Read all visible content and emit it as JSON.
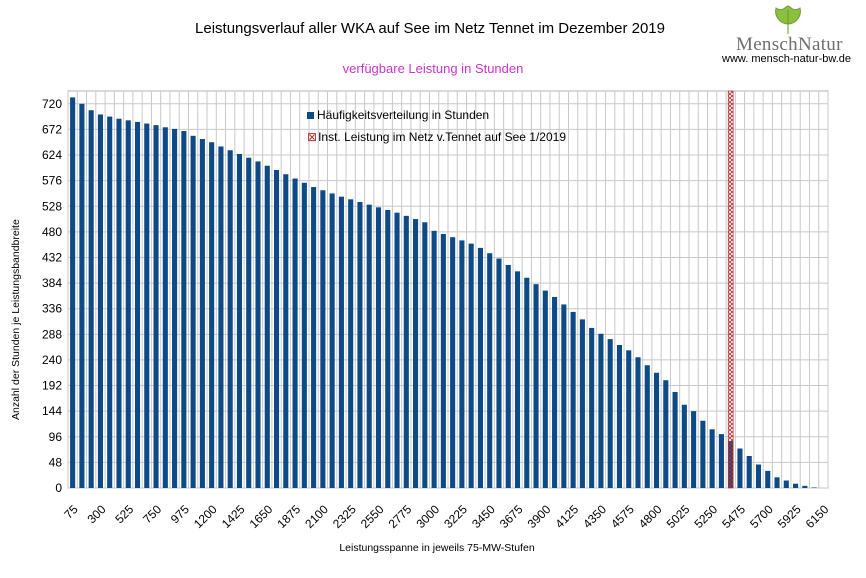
{
  "chart_data": {
    "type": "bar",
    "title": "Leistungsverlauf aller WKA auf See im Netz Tennet im Dezember 2019",
    "subtitle": "verfügbare Leistung in Stunden",
    "xlabel": "Leistungsspanne in jeweils 75-MW-Stufen",
    "ylabel": "Anzahl der Stunden je Leistungsbandbreite",
    "ylim": [
      0,
      744
    ],
    "yticks": [
      0,
      48,
      96,
      144,
      192,
      240,
      288,
      336,
      384,
      432,
      480,
      528,
      576,
      624,
      672,
      720
    ],
    "xtick_labels": [
      "75",
      "300",
      "525",
      "750",
      "975",
      "1200",
      "1425",
      "1650",
      "1875",
      "2100",
      "2325",
      "2550",
      "2775",
      "3000",
      "3225",
      "3450",
      "3675",
      "3900",
      "4125",
      "4350",
      "4575",
      "4800",
      "5025",
      "5250",
      "5475",
      "5700",
      "5925",
      "6150"
    ],
    "grid": true,
    "legend_position": "top-center",
    "categories": [
      "75",
      "150",
      "225",
      "300",
      "375",
      "450",
      "525",
      "600",
      "675",
      "750",
      "825",
      "900",
      "975",
      "1050",
      "1125",
      "1200",
      "1275",
      "1350",
      "1425",
      "1500",
      "1575",
      "1650",
      "1725",
      "1800",
      "1875",
      "1950",
      "2025",
      "2100",
      "2175",
      "2250",
      "2325",
      "2400",
      "2475",
      "2550",
      "2625",
      "2700",
      "2775",
      "2850",
      "2925",
      "3000",
      "3075",
      "3150",
      "3225",
      "3300",
      "3375",
      "3450",
      "3525",
      "3600",
      "3675",
      "3750",
      "3825",
      "3900",
      "3975",
      "4050",
      "4125",
      "4200",
      "4275",
      "4350",
      "4425",
      "4500",
      "4575",
      "4650",
      "4725",
      "4800",
      "4875",
      "4950",
      "5025",
      "5100",
      "5175",
      "5250",
      "5325",
      "5400",
      "5475",
      "5550",
      "5625",
      "5700",
      "5775",
      "5850",
      "5925",
      "6000",
      "6075",
      "6150"
    ],
    "series": [
      {
        "name": "Häufigkeitsverteilung in Stunden",
        "color": "#0d4a86",
        "values": [
          732,
          720,
          708,
          700,
          696,
          692,
          689,
          686,
          683,
          680,
          676,
          673,
          669,
          660,
          654,
          648,
          640,
          633,
          626,
          619,
          612,
          604,
          596,
          588,
          580,
          572,
          564,
          558,
          552,
          546,
          541,
          536,
          531,
          526,
          521,
          516,
          510,
          504,
          498,
          482,
          476,
          470,
          464,
          458,
          450,
          440,
          430,
          418,
          406,
          394,
          382,
          370,
          358,
          344,
          330,
          316,
          300,
          289,
          279,
          268,
          258,
          245,
          230,
          216,
          202,
          180,
          156,
          144,
          126,
          110,
          101,
          88,
          74,
          60,
          44,
          32,
          20,
          14,
          8,
          4,
          1,
          0
        ]
      }
    ],
    "marker": {
      "name": "Inst. Leistung im Netz v.Tennet auf See 1/2019",
      "x": 5400,
      "color": "#b03030"
    }
  },
  "branding": {
    "logo_text": "MenschNatur",
    "url": "www. mensch-natur-bw.de"
  }
}
